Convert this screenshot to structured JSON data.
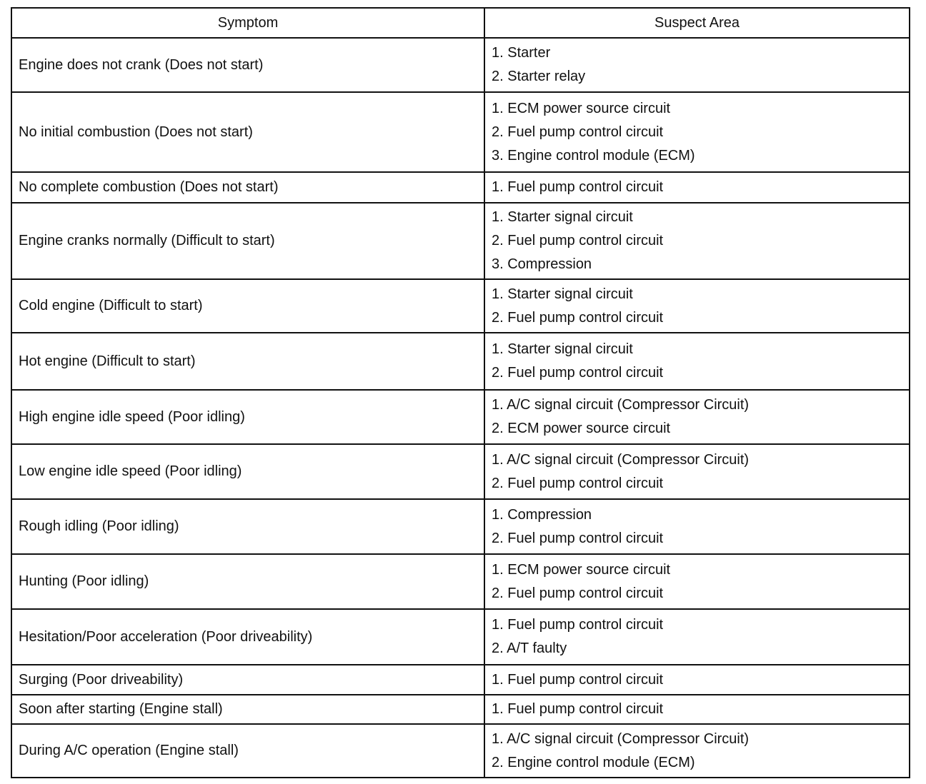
{
  "headers": {
    "symptom": "Symptom",
    "suspect_area": "Suspect Area"
  },
  "rows": [
    {
      "symptom": "Engine does not crank (Does not start)",
      "suspects": [
        "1. Starter",
        "2. Starter relay"
      ]
    },
    {
      "symptom": "No initial combustion (Does not start)",
      "suspects": [
        "1. ECM power source circuit",
        "2. Fuel pump control circuit",
        "3. Engine control module (ECM)"
      ]
    },
    {
      "symptom": "No complete combustion (Does not start)",
      "suspects": [
        "1. Fuel pump control circuit"
      ]
    },
    {
      "symptom": "Engine cranks normally (Difficult to start)",
      "suspects": [
        "1. Starter signal circuit",
        "2. Fuel pump control circuit",
        "3. Compression"
      ]
    },
    {
      "symptom": "Cold engine (Difficult to start)",
      "suspects": [
        "1. Starter signal circuit",
        "2. Fuel pump control circuit"
      ]
    },
    {
      "symptom": "Hot engine (Difficult to start)",
      "suspects": [
        "1. Starter signal circuit",
        "2. Fuel pump control circuit"
      ]
    },
    {
      "symptom": "High engine idle speed (Poor idling)",
      "suspects": [
        "1. A/C signal circuit (Compressor Circuit)",
        "2. ECM power source circuit"
      ]
    },
    {
      "symptom": "Low engine idle speed (Poor idling)",
      "suspects": [
        "1. A/C signal circuit (Compressor Circuit)",
        "2. Fuel pump control circuit"
      ]
    },
    {
      "symptom": "Rough idling (Poor idling)",
      "suspects": [
        "1. Compression",
        "2. Fuel pump control circuit"
      ]
    },
    {
      "symptom": "Hunting (Poor idling)",
      "suspects": [
        "1. ECM power source circuit",
        "2. Fuel pump control circuit"
      ]
    },
    {
      "symptom": "Hesitation/Poor acceleration (Poor driveability)",
      "suspects": [
        "1. Fuel pump control circuit",
        "2. A/T faulty"
      ]
    },
    {
      "symptom": "Surging (Poor driveability)",
      "suspects": [
        "1. Fuel pump control circuit"
      ]
    },
    {
      "symptom": "Soon after starting (Engine stall)",
      "suspects": [
        "1. Fuel pump control circuit"
      ]
    },
    {
      "symptom": "During A/C operation (Engine stall)",
      "suspects": [
        "1. A/C signal circuit (Compressor Circuit)",
        "2. Engine control module (ECM)"
      ]
    }
  ]
}
